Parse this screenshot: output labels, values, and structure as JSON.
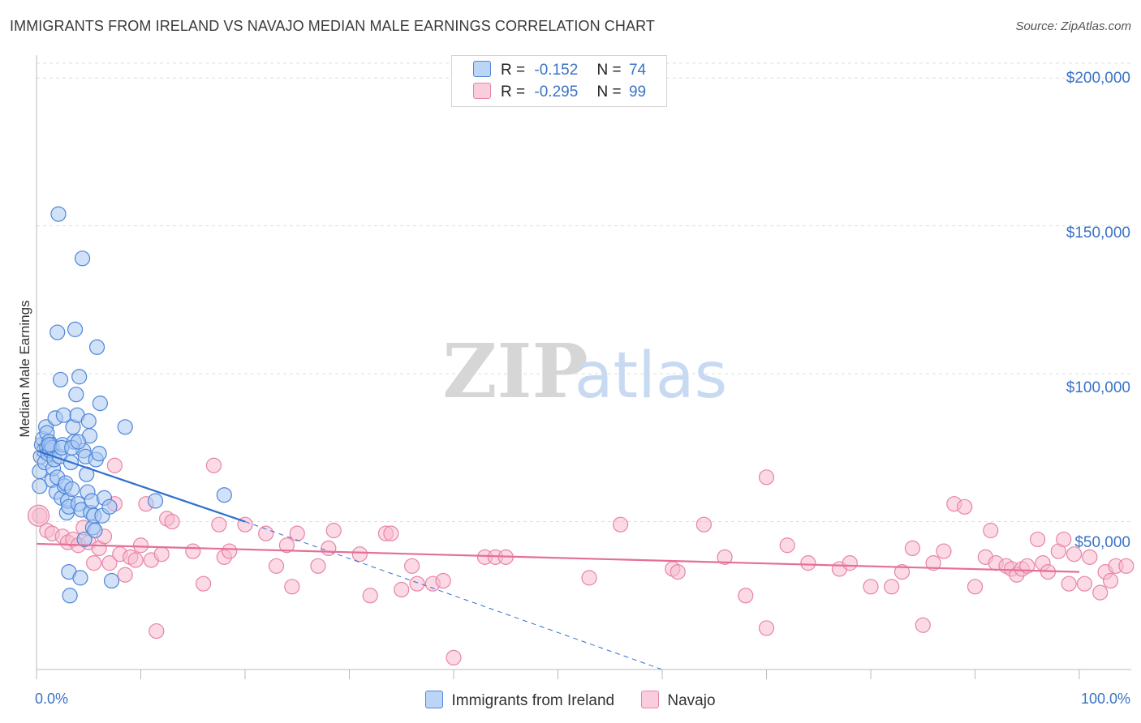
{
  "title": "IMMIGRANTS FROM IRELAND VS NAVAJO MEDIAN MALE EARNINGS CORRELATION CHART",
  "source": "Source: ZipAtlas.com",
  "watermark": {
    "zip": "ZIP",
    "atlas": "atlas"
  },
  "legend": {
    "rows": [
      {
        "r_label": "R =",
        "r_value": "-0.152",
        "n_label": "N =",
        "n_value": "74"
      },
      {
        "r_label": "R =",
        "r_value": "-0.295",
        "n_label": "N =",
        "n_value": "99"
      }
    ]
  },
  "bottom_legend": [
    "Immigrants from Ireland",
    "Navajo"
  ],
  "colors": {
    "ireland_fill": "#a9c8f2",
    "ireland_stroke": "#4f86d9",
    "ireland_line": "#2f6fd1",
    "navajo_fill": "#f7bcd0",
    "navajo_stroke": "#e784a6",
    "navajo_line": "#e56f98",
    "tick_text": "#3a73c8"
  },
  "chart_data": {
    "type": "scatter",
    "title": "IMMIGRANTS FROM IRELAND VS NAVAJO MEDIAN MALE EARNINGS CORRELATION CHART",
    "xlabel": "",
    "ylabel": "Median Male Earnings",
    "xlim": [
      0,
      100
    ],
    "ylim": [
      0,
      205000
    ],
    "x_tick_labels": [
      "0.0%",
      "100.0%"
    ],
    "y_ticks": [
      50000,
      100000,
      150000,
      200000
    ],
    "y_tick_labels": [
      "$50,000",
      "$100,000",
      "$150,000",
      "$200,000"
    ],
    "series": [
      {
        "name": "Immigrants from Ireland",
        "R": -0.152,
        "N": 74,
        "trend": {
          "x0": 0,
          "y0": 74000,
          "x1": 20,
          "y1": 50000,
          "dashed_to_x": 60,
          "dashed_to_y": 0
        },
        "points": [
          [
            0.3,
            62000
          ],
          [
            0.3,
            67000
          ],
          [
            0.4,
            72000
          ],
          [
            0.5,
            76000
          ],
          [
            0.6,
            78000
          ],
          [
            0.7,
            74000
          ],
          [
            0.8,
            70000
          ],
          [
            0.9,
            82000
          ],
          [
            1.0,
            80000
          ],
          [
            1.0,
            75000
          ],
          [
            1.1,
            73000
          ],
          [
            1.2,
            77000
          ],
          [
            1.3,
            74000
          ],
          [
            1.4,
            76000
          ],
          [
            1.5,
            75000
          ],
          [
            1.5,
            64000
          ],
          [
            1.6,
            68000
          ],
          [
            1.7,
            71000
          ],
          [
            1.8,
            85000
          ],
          [
            1.9,
            60000
          ],
          [
            2.0,
            114000
          ],
          [
            2.0,
            65000
          ],
          [
            2.1,
            154000
          ],
          [
            2.2,
            72000
          ],
          [
            2.3,
            98000
          ],
          [
            2.4,
            58000
          ],
          [
            2.5,
            76000
          ],
          [
            2.6,
            86000
          ],
          [
            2.7,
            62000
          ],
          [
            2.8,
            63000
          ],
          [
            2.9,
            53000
          ],
          [
            3.0,
            57000
          ],
          [
            3.1,
            55000
          ],
          [
            3.1,
            33000
          ],
          [
            3.2,
            25000
          ],
          [
            3.3,
            70000
          ],
          [
            3.4,
            61000
          ],
          [
            3.5,
            82000
          ],
          [
            3.6,
            77000
          ],
          [
            3.7,
            115000
          ],
          [
            3.8,
            93000
          ],
          [
            3.9,
            86000
          ],
          [
            4.0,
            56000
          ],
          [
            4.1,
            99000
          ],
          [
            4.2,
            31000
          ],
          [
            4.3,
            54000
          ],
          [
            4.4,
            139000
          ],
          [
            4.5,
            74000
          ],
          [
            4.6,
            44000
          ],
          [
            4.7,
            72000
          ],
          [
            4.8,
            66000
          ],
          [
            4.9,
            60000
          ],
          [
            5.0,
            84000
          ],
          [
            5.1,
            79000
          ],
          [
            5.2,
            53000
          ],
          [
            5.3,
            57000
          ],
          [
            5.4,
            48000
          ],
          [
            5.5,
            52000
          ],
          [
            5.6,
            47000
          ],
          [
            5.7,
            71000
          ],
          [
            5.8,
            109000
          ],
          [
            6.0,
            73000
          ],
          [
            6.1,
            90000
          ],
          [
            6.3,
            52000
          ],
          [
            6.5,
            58000
          ],
          [
            7.0,
            55000
          ],
          [
            7.2,
            30000
          ],
          [
            8.5,
            82000
          ],
          [
            11.4,
            57000
          ],
          [
            18.0,
            59000
          ],
          [
            1.2,
            76000
          ],
          [
            2.4,
            75000
          ],
          [
            3.4,
            75000
          ],
          [
            4.0,
            77000
          ]
        ]
      },
      {
        "name": "Navajo",
        "R": -0.295,
        "N": 99,
        "trend": {
          "x0": 0,
          "y0": 42500,
          "x1": 100,
          "y1": 33000
        },
        "points": [
          [
            0.3,
            52000
          ],
          [
            1.0,
            47000
          ],
          [
            1.5,
            46000
          ],
          [
            2.5,
            45000
          ],
          [
            3.0,
            43000
          ],
          [
            3.5,
            44000
          ],
          [
            4.0,
            42000
          ],
          [
            4.5,
            48000
          ],
          [
            5.0,
            43000
          ],
          [
            5.5,
            36000
          ],
          [
            6.0,
            41000
          ],
          [
            6.5,
            45000
          ],
          [
            7.0,
            36000
          ],
          [
            7.5,
            56000
          ],
          [
            7.5,
            69000
          ],
          [
            8.0,
            39000
          ],
          [
            8.5,
            32000
          ],
          [
            9.0,
            38000
          ],
          [
            9.5,
            37000
          ],
          [
            10.0,
            42000
          ],
          [
            10.5,
            56000
          ],
          [
            11.0,
            37000
          ],
          [
            11.5,
            13000
          ],
          [
            12.0,
            39000
          ],
          [
            12.5,
            51000
          ],
          [
            13.0,
            50000
          ],
          [
            15.0,
            40000
          ],
          [
            16.0,
            29000
          ],
          [
            17.0,
            69000
          ],
          [
            17.5,
            49000
          ],
          [
            18.0,
            38000
          ],
          [
            18.5,
            40000
          ],
          [
            20.0,
            49000
          ],
          [
            22.0,
            46000
          ],
          [
            23.0,
            35000
          ],
          [
            24.0,
            42000
          ],
          [
            24.5,
            28000
          ],
          [
            25.0,
            46000
          ],
          [
            27.0,
            35000
          ],
          [
            28.0,
            41000
          ],
          [
            28.5,
            47000
          ],
          [
            31.0,
            39000
          ],
          [
            32.0,
            25000
          ],
          [
            33.5,
            46000
          ],
          [
            34.0,
            46000
          ],
          [
            35.0,
            27000
          ],
          [
            36.0,
            35000
          ],
          [
            36.5,
            29000
          ],
          [
            38.0,
            29000
          ],
          [
            39.0,
            30000
          ],
          [
            40.0,
            4000
          ],
          [
            43.0,
            38000
          ],
          [
            44.0,
            38000
          ],
          [
            45.0,
            38000
          ],
          [
            53.0,
            31000
          ],
          [
            56.0,
            49000
          ],
          [
            61.0,
            34000
          ],
          [
            61.5,
            33000
          ],
          [
            64.0,
            49000
          ],
          [
            66.0,
            38000
          ],
          [
            68.0,
            25000
          ],
          [
            70.0,
            65000
          ],
          [
            70.0,
            14000
          ],
          [
            72.0,
            42000
          ],
          [
            74.0,
            36000
          ],
          [
            77.0,
            34000
          ],
          [
            78.0,
            36000
          ],
          [
            80.0,
            28000
          ],
          [
            82.0,
            28000
          ],
          [
            83.0,
            33000
          ],
          [
            84.0,
            41000
          ],
          [
            85.0,
            15000
          ],
          [
            86.0,
            36000
          ],
          [
            87.0,
            40000
          ],
          [
            88.0,
            56000
          ],
          [
            89.0,
            55000
          ],
          [
            90.0,
            28000
          ],
          [
            91.0,
            38000
          ],
          [
            91.5,
            47000
          ],
          [
            92.0,
            36000
          ],
          [
            93.0,
            35000
          ],
          [
            93.5,
            34000
          ],
          [
            94.0,
            32000
          ],
          [
            94.5,
            34000
          ],
          [
            95.0,
            35000
          ],
          [
            96.0,
            44000
          ],
          [
            96.5,
            36000
          ],
          [
            97.0,
            33000
          ],
          [
            98.0,
            40000
          ],
          [
            98.5,
            44000
          ],
          [
            99.0,
            29000
          ],
          [
            99.5,
            39000
          ],
          [
            100.5,
            29000
          ],
          [
            101.0,
            38000
          ],
          [
            102.0,
            26000
          ],
          [
            102.5,
            33000
          ],
          [
            103.0,
            30000
          ],
          [
            103.5,
            35000
          ],
          [
            104.5,
            35000
          ]
        ]
      }
    ]
  }
}
